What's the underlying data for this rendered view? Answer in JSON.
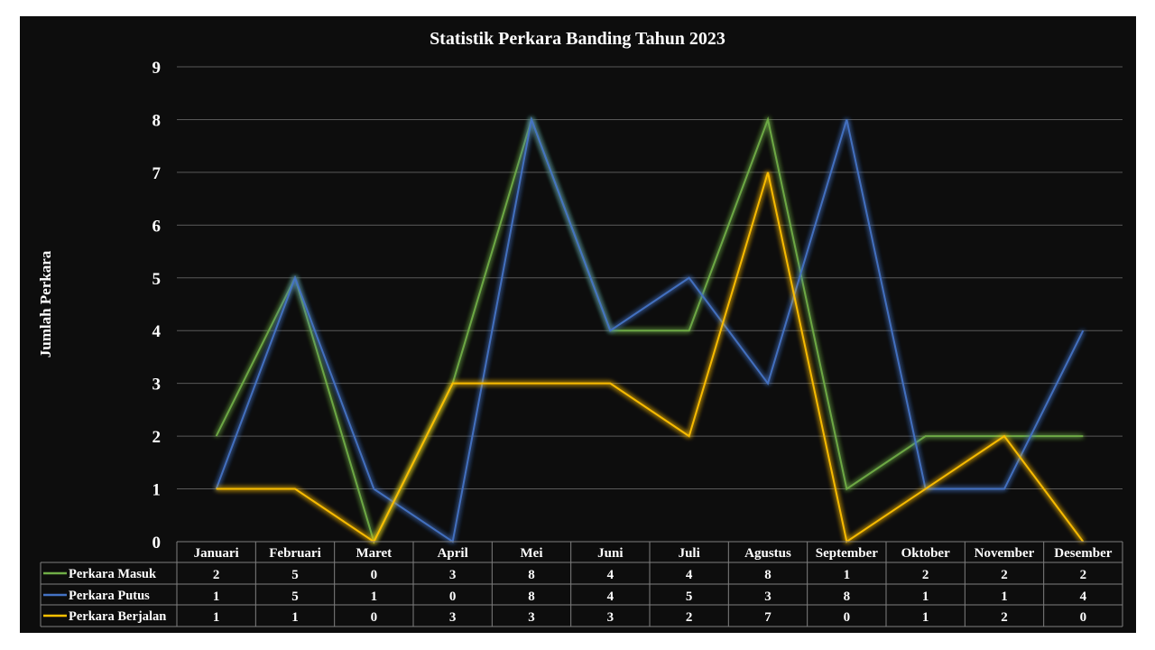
{
  "chart_data": {
    "type": "line",
    "title": "Statistik Perkara Banding Tahun 2023",
    "xlabel": "",
    "ylabel": "Jumlah Perkara",
    "ylim": [
      0,
      9
    ],
    "yticks": [
      0,
      1,
      2,
      3,
      4,
      5,
      6,
      7,
      8,
      9
    ],
    "grid": true,
    "legend": "data-table",
    "categories": [
      "Januari",
      "Februari",
      "Maret",
      "April",
      "Mei",
      "Juni",
      "Juli",
      "Agustus",
      "September",
      "Oktober",
      "November",
      "Desember"
    ],
    "series": [
      {
        "name": "Perkara Masuk",
        "color": "#70ad47",
        "values": [
          2,
          5,
          0,
          3,
          8,
          4,
          4,
          8,
          1,
          2,
          2,
          2
        ]
      },
      {
        "name": "Perkara Putus",
        "color": "#4472c4",
        "values": [
          1,
          5,
          1,
          0,
          8,
          4,
          5,
          3,
          8,
          1,
          1,
          4
        ]
      },
      {
        "name": "Perkara Berjalan",
        "color": "#ffc000",
        "values": [
          1,
          1,
          0,
          3,
          3,
          3,
          2,
          7,
          0,
          1,
          2,
          0
        ]
      }
    ]
  },
  "colors": {
    "background": "#0d0d0d",
    "grid": "#595959",
    "text": "#ffffff"
  }
}
